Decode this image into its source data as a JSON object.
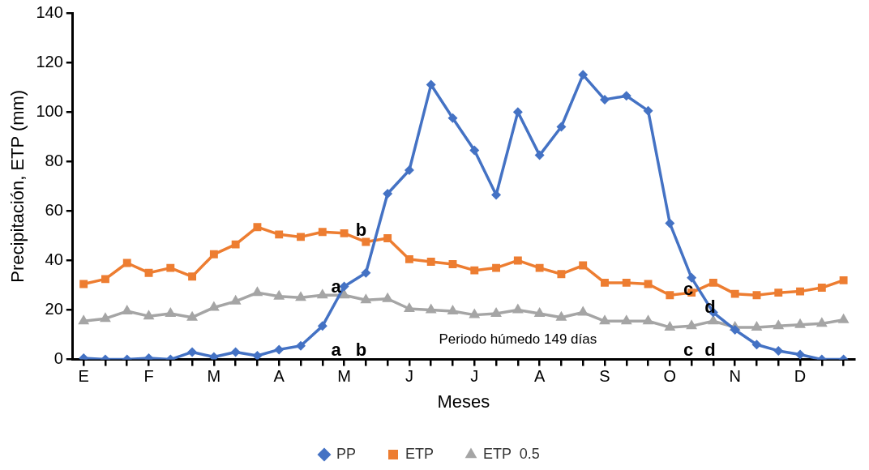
{
  "chart_data": {
    "type": "line",
    "xlabel": "Meses",
    "ylabel": "Precipitación, ETP (mm)",
    "categories": [
      "E",
      null,
      null,
      "F",
      null,
      null,
      "M",
      null,
      null,
      "A",
      null,
      null,
      "M",
      null,
      null,
      "J",
      null,
      null,
      "J",
      null,
      null,
      "A",
      null,
      null,
      "S",
      null,
      null,
      "O",
      null,
      null,
      "N",
      null,
      null,
      "D",
      null,
      null
    ],
    "ylim": [
      0,
      140
    ],
    "yticks": [
      0,
      20,
      40,
      60,
      80,
      100,
      120,
      140
    ],
    "legend": "bottom",
    "series": [
      {
        "name": "PP",
        "color": "#4472c4",
        "marker": "diamond",
        "values": [
          0.5,
          0,
          0,
          0.5,
          0,
          3,
          1,
          3,
          1.5,
          4,
          5.5,
          13.5,
          29.5,
          35,
          67,
          76.5,
          111,
          97.5,
          84.5,
          66.5,
          100,
          82.5,
          94,
          115,
          105,
          106.5,
          100.5,
          55,
          33,
          19,
          12,
          6,
          3.5,
          2,
          0,
          0
        ]
      },
      {
        "name": "ETP",
        "color": "#ed7d31",
        "marker": "square",
        "values": [
          30.5,
          32.5,
          39,
          35,
          37,
          33.5,
          42.5,
          46.5,
          53.5,
          50.5,
          49.5,
          51.5,
          51,
          47.5,
          49,
          40.5,
          39.5,
          38.5,
          36,
          37,
          40,
          37,
          34.5,
          38,
          31,
          31,
          30.5,
          26,
          27,
          31,
          26.5,
          26,
          27,
          27.5,
          29,
          32
        ]
      },
      {
        "name": "ETP  0.5",
        "color": "#a5a5a5",
        "marker": "triangle",
        "values": [
          15.5,
          16.5,
          19.5,
          17.5,
          18.5,
          17,
          21,
          23.5,
          27,
          25.5,
          25,
          26,
          26,
          24,
          24.5,
          20.5,
          20,
          19.5,
          18,
          18.5,
          20,
          18.5,
          17,
          19,
          15.5,
          15.5,
          15.5,
          13,
          13.5,
          15.5,
          13,
          13,
          13.5,
          14,
          14.5,
          16
        ]
      }
    ],
    "annotations": [
      "a",
      "b",
      "c",
      "d",
      "a",
      "b",
      "c",
      "d",
      "Periodo húmedo 149 días"
    ]
  }
}
